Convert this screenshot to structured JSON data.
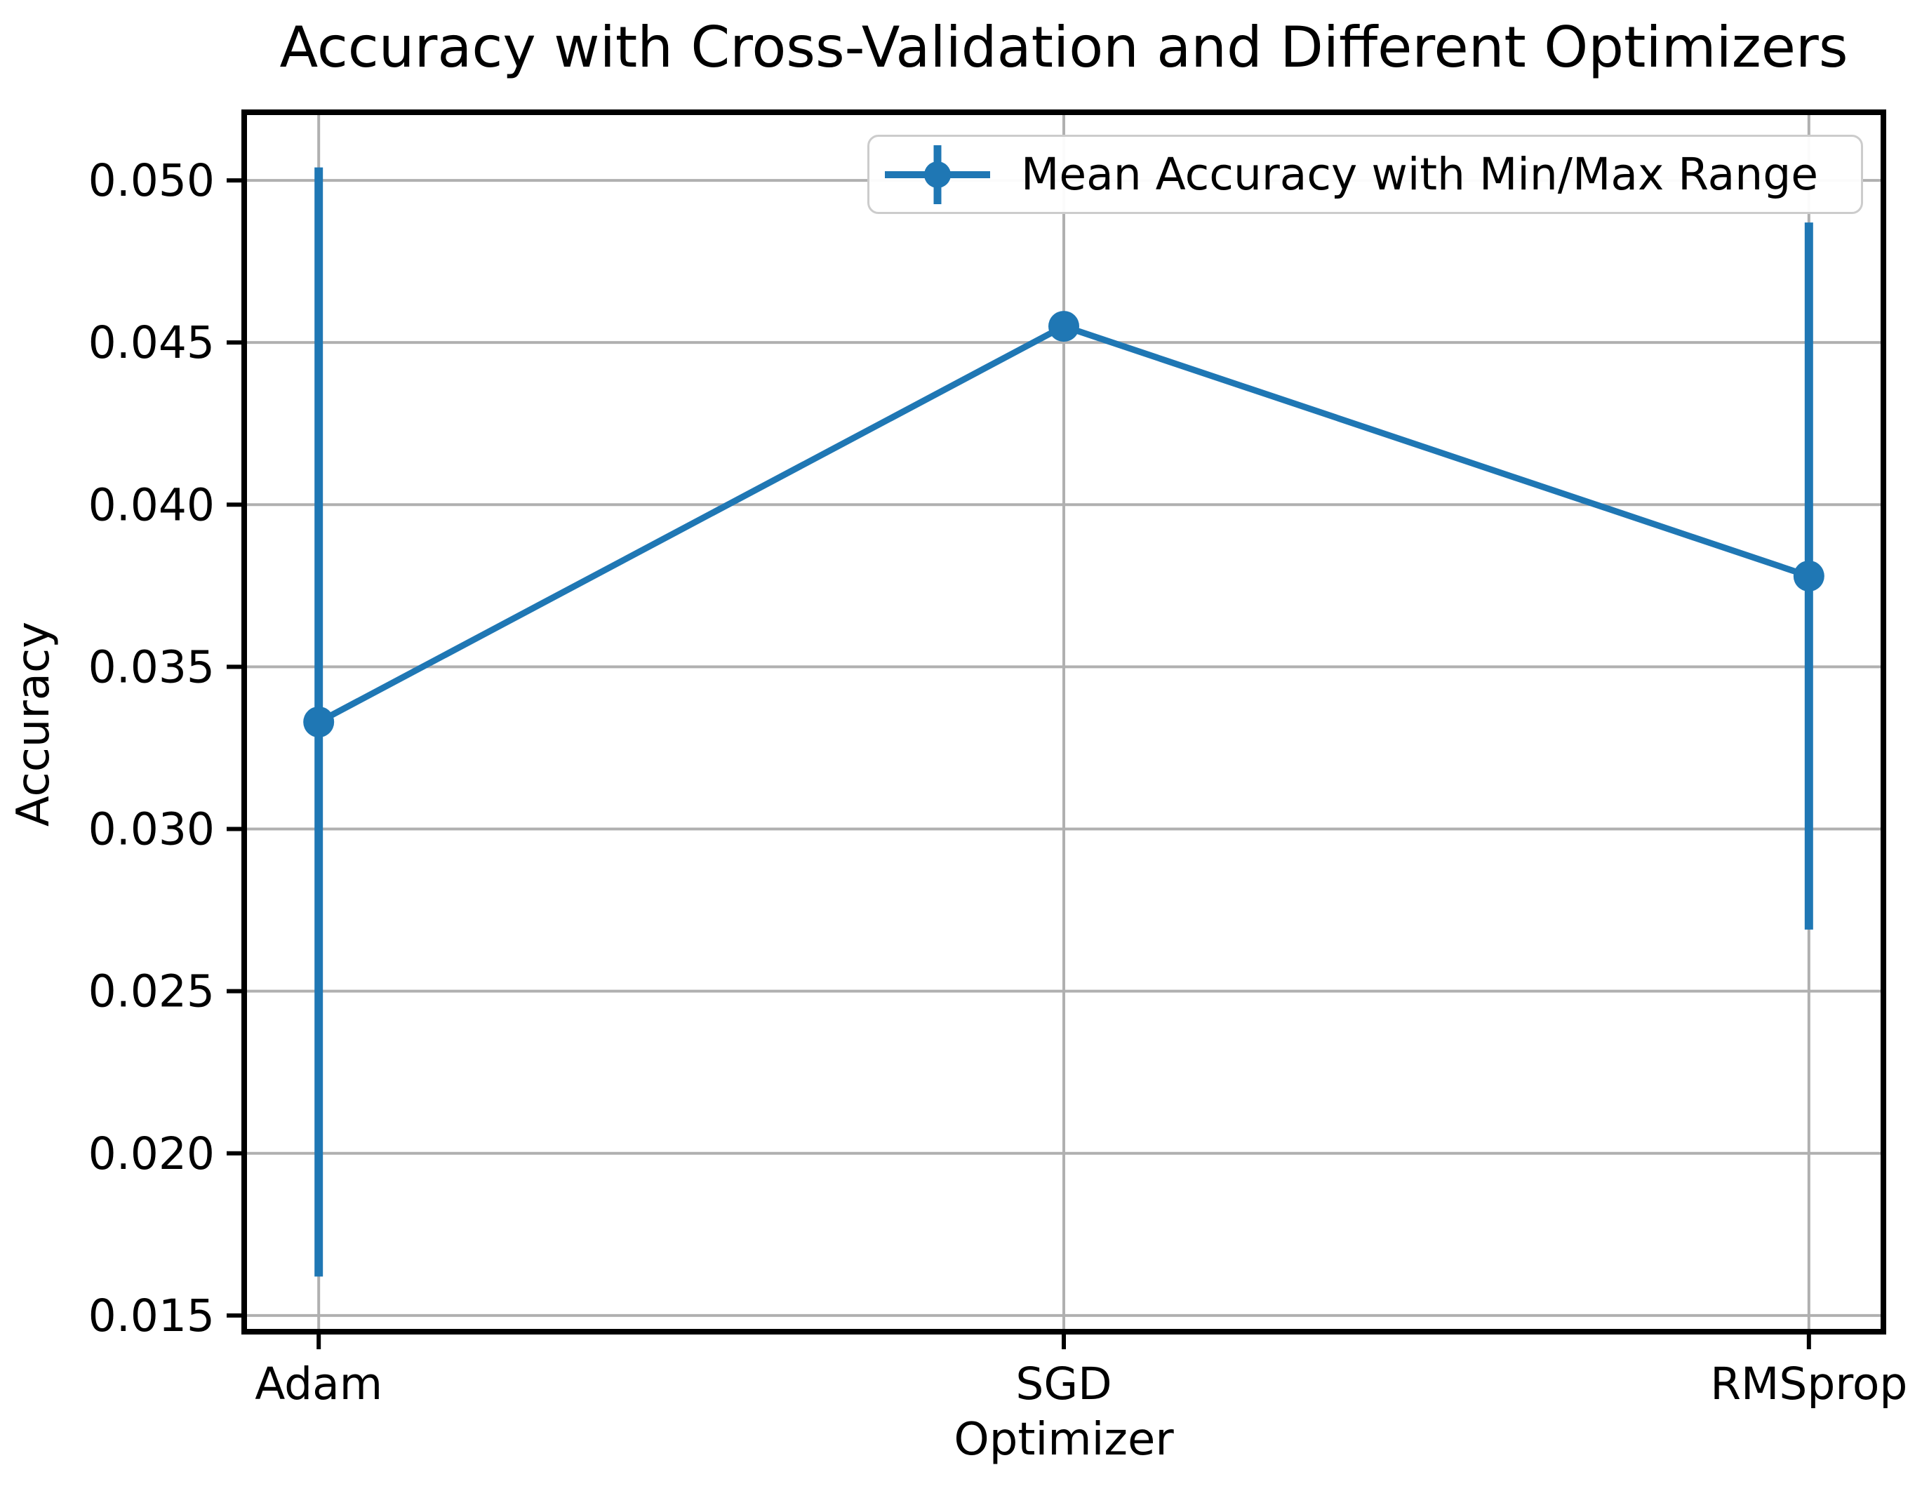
{
  "figure": {
    "background": "#ffffff",
    "text_color": "#000000",
    "grid_color": "#b0b0b0",
    "spine_color": "#000000",
    "accent_color": "#1f77b4"
  },
  "chart_data": {
    "type": "line",
    "title": "Accuracy with Cross-Validation and Different Optimizers",
    "xlabel": "Optimizer",
    "ylabel": "Accuracy",
    "categories": [
      "Adam",
      "SGD",
      "RMSprop"
    ],
    "series": [
      {
        "name": "Mean Accuracy with Min/Max Range",
        "mean": [
          0.0333,
          0.0455,
          0.0378
        ],
        "min": [
          0.0162,
          0.0455,
          0.0269
        ],
        "max": [
          0.0504,
          0.0455,
          0.0487
        ]
      }
    ],
    "yticks": [
      0.015,
      0.02,
      0.025,
      0.03,
      0.035,
      0.04,
      0.045,
      0.05
    ],
    "ytick_labels": [
      "0.015",
      "0.020",
      "0.025",
      "0.030",
      "0.035",
      "0.040",
      "0.045",
      "0.050"
    ],
    "ylim": [
      0.0145,
      0.0521
    ],
    "xlim": [
      -0.1,
      2.1
    ],
    "grid": true,
    "legend": {
      "label": "Mean Accuracy with Min/Max Range",
      "position": "upper right"
    },
    "marker": "o",
    "line_color": "#1f77b4"
  }
}
